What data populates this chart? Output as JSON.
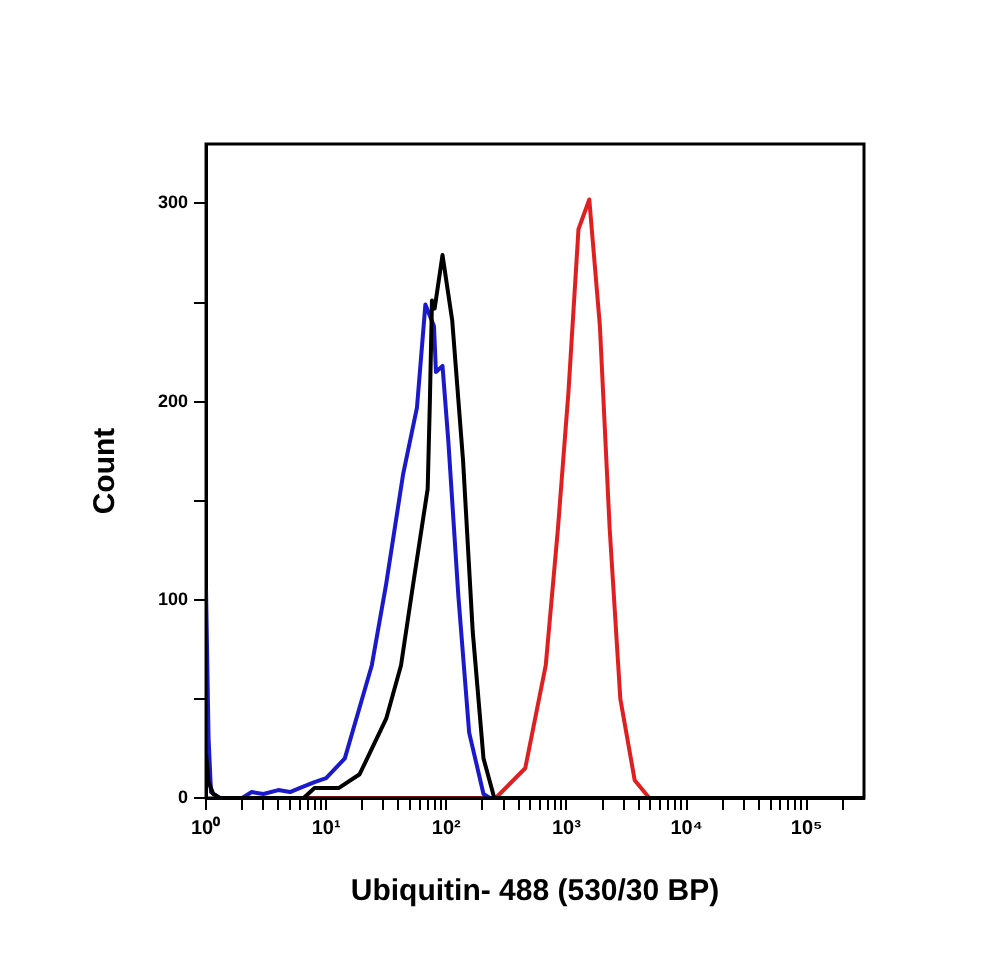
{
  "chart_data": {
    "type": "line",
    "xlabel": "Ubiquitin- 488 (530/30 BP)",
    "ylabel": "Count",
    "xlim": [
      1,
      300000
    ],
    "ylim": [
      0,
      330
    ],
    "xticks": [
      {
        "value": 1,
        "label": "10⁰"
      },
      {
        "value": 2,
        "label": null
      },
      {
        "value": 3,
        "label": null
      },
      {
        "value": 4,
        "label": null
      },
      {
        "value": 5,
        "label": null
      },
      {
        "value": 6,
        "label": null
      },
      {
        "value": 7,
        "label": null
      },
      {
        "value": 8,
        "label": null
      },
      {
        "value": 9,
        "label": null
      },
      {
        "value": 10,
        "label": "10¹"
      },
      {
        "value": 20,
        "label": null
      },
      {
        "value": 30,
        "label": null
      },
      {
        "value": 40,
        "label": null
      },
      {
        "value": 50,
        "label": null
      },
      {
        "value": 60,
        "label": null
      },
      {
        "value": 70,
        "label": null
      },
      {
        "value": 80,
        "label": null
      },
      {
        "value": 90,
        "label": null
      },
      {
        "value": 100,
        "label": "10²"
      },
      {
        "value": 200,
        "label": null
      },
      {
        "value": 300,
        "label": null
      },
      {
        "value": 400,
        "label": null
      },
      {
        "value": 500,
        "label": null
      },
      {
        "value": 600,
        "label": null
      },
      {
        "value": 700,
        "label": null
      },
      {
        "value": 800,
        "label": null
      },
      {
        "value": 900,
        "label": null
      },
      {
        "value": 1000,
        "label": "10³"
      },
      {
        "value": 2000,
        "label": null
      },
      {
        "value": 3000,
        "label": null
      },
      {
        "value": 4000,
        "label": null
      },
      {
        "value": 5000,
        "label": null
      },
      {
        "value": 6000,
        "label": null
      },
      {
        "value": 7000,
        "label": null
      },
      {
        "value": 8000,
        "label": null
      },
      {
        "value": 9000,
        "label": null
      },
      {
        "value": 10000,
        "label": "10⁴"
      },
      {
        "value": 20000,
        "label": null
      },
      {
        "value": 30000,
        "label": null
      },
      {
        "value": 40000,
        "label": null
      },
      {
        "value": 50000,
        "label": null
      },
      {
        "value": 60000,
        "label": null
      },
      {
        "value": 70000,
        "label": null
      },
      {
        "value": 80000,
        "label": null
      },
      {
        "value": 90000,
        "label": null
      },
      {
        "value": 100000,
        "label": "10⁵"
      },
      {
        "value": 200000,
        "label": null
      }
    ],
    "yticks": [
      0,
      {
        "value": 50,
        "label": null
      },
      100,
      {
        "value": 150,
        "label": null
      },
      200,
      {
        "value": 250,
        "label": null
      },
      300
    ],
    "log": "x",
    "grid": false,
    "legend": false,
    "marker": "none",
    "line_style": "solid",
    "series": [
      {
        "color": "#000000",
        "x": [
          1,
          1.05,
          1.15,
          1.3,
          2,
          4,
          6.5,
          8,
          12.7,
          19,
          31.6,
          42,
          53,
          70,
          73,
          76,
          80,
          93,
          112,
          138,
          166,
          204,
          251,
          300000
        ],
        "values": [
          22,
          8,
          2,
          0,
          0,
          0,
          0,
          5,
          5,
          12,
          40,
          67,
          108,
          156,
          200,
          251,
          247,
          274,
          241,
          170,
          84,
          20,
          0,
          0
        ]
      },
      {
        "color": "#1a1acc",
        "x": [
          1,
          1.05,
          1.1,
          1.3,
          2,
          2.4,
          3,
          4,
          5,
          6,
          8,
          10,
          14.3,
          24,
          31.6,
          43.6,
          57,
          67,
          79,
          82,
          93,
          104,
          126,
          155,
          204,
          230,
          300000
        ],
        "values": [
          105,
          30,
          3,
          0,
          0,
          3,
          2,
          4,
          3,
          5,
          8,
          10,
          20,
          67,
          108,
          163,
          197,
          249,
          238,
          215,
          218,
          180,
          102,
          33,
          2,
          0,
          0
        ]
      },
      {
        "color": "#e02020",
        "x": [
          1.5,
          230,
          258,
          454,
          673,
          850,
          1040,
          1260,
          1550,
          1900,
          2290,
          2810,
          3700,
          4900,
          300000
        ],
        "values": [
          0,
          0,
          0,
          15,
          67,
          136,
          205,
          287,
          302,
          238,
          136,
          50,
          9,
          0,
          0
        ]
      }
    ]
  }
}
